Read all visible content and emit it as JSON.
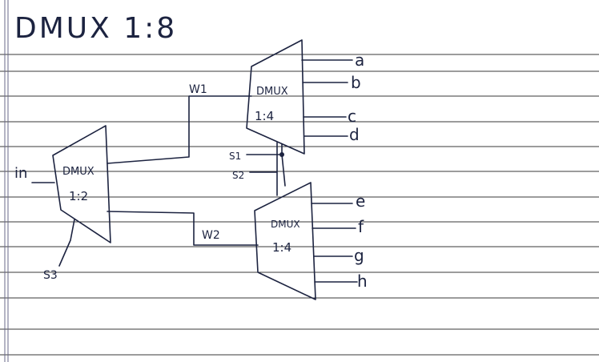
{
  "title": "DMUX 1:8",
  "input_label": "in",
  "select_labels": {
    "s1": "S1",
    "s2": "S2",
    "s3": "S3"
  },
  "wire_labels": {
    "w1": "W1",
    "w2": "W2"
  },
  "blocks": {
    "first_stage": {
      "name": "DMUX",
      "ratio": "1:2"
    },
    "upper_stage": {
      "name": "DMUX",
      "ratio": "1:4"
    },
    "lower_stage": {
      "name": "DMUX",
      "ratio": "1:4"
    }
  },
  "upper_outputs": [
    "a",
    "b",
    "c",
    "d"
  ],
  "lower_outputs": [
    "e",
    "f",
    "g",
    "h"
  ],
  "colors": {
    "ink": "#1c2340",
    "paper": "#ffffff",
    "ruling": "#3a3a3a"
  }
}
